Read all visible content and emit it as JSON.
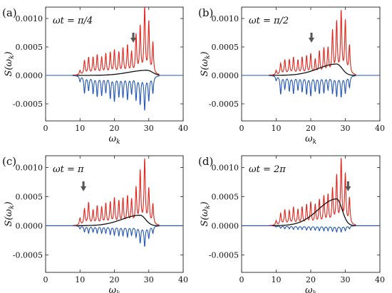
{
  "chart_data": [
    {
      "type": "line",
      "panel_label": "(a)",
      "annotation": "ωt = π/4",
      "xlabel": "ω_k",
      "ylabel": "S(ω_k)",
      "xlim": [
        0,
        40
      ],
      "ylim": [
        -0.0008,
        0.0012
      ],
      "x_ticks": [
        "0",
        "10",
        "20",
        "30",
        "40"
      ],
      "y_ticks": [
        "0.0010",
        "0.0005",
        "0.0000",
        "-0.0005"
      ],
      "arrow_x": 25.5,
      "envelope_peak_x": 29.5,
      "envelope_peak_y": 9e-05,
      "series": [
        {
          "color": "#e3241b",
          "x": [
            10,
            11.3,
            12.5,
            13.8,
            15.0,
            16.3,
            17.5,
            18.8,
            20.0,
            21.3,
            22.5,
            23.8,
            25.0,
            26.3,
            27.5,
            28.8,
            30.0,
            31.2
          ],
          "y": [
            8e-05,
            0.00025,
            0.0003,
            0.0003,
            0.00034,
            0.0003,
            0.00036,
            0.00038,
            0.00042,
            0.00038,
            0.00045,
            0.0005,
            0.00038,
            0.00068,
            0.00082,
            0.00115,
            0.0009,
            0.00055
          ]
        },
        {
          "color": "#2256b5",
          "x": [
            10,
            11.3,
            12.5,
            13.8,
            15.0,
            16.3,
            17.5,
            18.8,
            20.0,
            21.3,
            22.5,
            23.8,
            25.0,
            26.3,
            27.5,
            28.8,
            30.0,
            31.2
          ],
          "y": [
            -0.0001,
            -0.0003,
            -0.00025,
            -0.0003,
            -0.00035,
            -0.00033,
            -0.00028,
            -0.00038,
            -0.00043,
            -0.00035,
            -0.00036,
            -0.0004,
            -0.0003,
            -0.00041,
            -0.00048,
            -0.00058,
            -0.00042,
            -0.0003
          ]
        }
      ]
    },
    {
      "type": "line",
      "panel_label": "(b)",
      "annotation": "ωt = π/2",
      "xlabel": "ω_k",
      "ylabel": "S(ω_k)",
      "xlim": [
        0,
        40
      ],
      "ylim": [
        -0.0008,
        0.0012
      ],
      "x_ticks": [
        "0",
        "10",
        "20",
        "30",
        "40"
      ],
      "y_ticks": [
        "0.0010",
        "0.0005",
        "0.0000",
        "-0.0005"
      ],
      "arrow_x": 20.2,
      "envelope_peak_x": 27.5,
      "envelope_peak_y": 0.0002,
      "series": [
        {
          "color": "#e3241b",
          "x": [
            10,
            11.3,
            12.5,
            13.8,
            15.0,
            16.3,
            17.5,
            18.8,
            20.0,
            21.3,
            22.5,
            23.8,
            25.0,
            26.3,
            27.5,
            28.8,
            30.0,
            31.2
          ],
          "y": [
            8e-05,
            0.0002,
            0.00026,
            0.00026,
            0.0003,
            0.00025,
            0.0003,
            0.00032,
            0.00036,
            0.00026,
            0.0004,
            0.00045,
            0.00045,
            0.00075,
            0.0009,
            0.00108,
            0.00092,
            0.0005
          ]
        },
        {
          "color": "#2256b5",
          "x": [
            10,
            11.3,
            12.5,
            13.8,
            15.0,
            16.3,
            17.5,
            18.8,
            20.0,
            21.3,
            22.5,
            23.8,
            25.0,
            26.3,
            27.5,
            28.8,
            30.0,
            31.2
          ],
          "y": [
            -8e-05,
            -0.00032,
            -0.00022,
            -0.00026,
            -0.0003,
            -0.00024,
            -0.00027,
            -0.00031,
            -0.00034,
            -0.00026,
            -0.0003,
            -0.00029,
            -0.00023,
            -0.0003,
            -0.00035,
            -0.00036,
            -0.0003,
            -0.0002
          ]
        }
      ]
    },
    {
      "type": "line",
      "panel_label": "(c)",
      "annotation": "ωt = π",
      "xlabel": "ω_k",
      "ylabel": "S(ω_k)",
      "xlim": [
        0,
        40
      ],
      "ylim": [
        -0.0008,
        0.0012
      ],
      "x_ticks": [
        "0",
        "10",
        "20",
        "30",
        "40"
      ],
      "y_ticks": [
        "0.0010",
        "0.0005",
        "0.0000",
        "-0.0005"
      ],
      "arrow_x": 11.0,
      "envelope_peak_x": 27.5,
      "envelope_peak_y": 0.00018,
      "series": [
        {
          "color": "#e3241b",
          "x": [
            10,
            11.3,
            12.5,
            13.8,
            15.0,
            16.3,
            17.5,
            18.8,
            20.0,
            21.3,
            22.5,
            23.8,
            25.0,
            26.3,
            27.5,
            28.8,
            30.0,
            31.2
          ],
          "y": [
            0.00012,
            0.00028,
            0.00038,
            0.00025,
            0.00032,
            0.0003,
            0.00036,
            0.00038,
            0.00045,
            0.0004,
            0.00044,
            0.00048,
            0.00042,
            0.00062,
            0.0009,
            0.0011,
            0.0006,
            0.00035
          ]
        },
        {
          "color": "#2256b5",
          "x": [
            10,
            11.3,
            12.5,
            13.8,
            15.0,
            16.3,
            17.5,
            18.8,
            20.0,
            21.3,
            22.5,
            23.8,
            25.0,
            26.3,
            27.5,
            28.8,
            30.0,
            31.2
          ],
          "y": [
            -5e-05,
            -0.0001,
            -0.00012,
            -0.0001,
            -0.00012,
            -0.00012,
            -0.00012,
            -0.00014,
            -0.00015,
            -0.00016,
            -0.00016,
            -0.00018,
            -0.00015,
            -0.00018,
            -0.00028,
            -0.00034,
            -0.0002,
            -0.00012
          ]
        }
      ]
    },
    {
      "type": "line",
      "panel_label": "(d)",
      "annotation": "ωt = 2π",
      "xlabel": "ω_k",
      "ylabel": "S(ω_k)",
      "xlim": [
        0,
        40
      ],
      "ylim": [
        -0.0008,
        0.0012
      ],
      "x_ticks": [
        "0",
        "10",
        "20",
        "30",
        "40"
      ],
      "y_ticks": [
        "0.0010",
        "0.0005",
        "0.0000",
        "-0.0005"
      ],
      "arrow_x": 30.8,
      "envelope_peak_x": 27.5,
      "envelope_peak_y": 0.00046,
      "series": [
        {
          "color": "#e3241b",
          "x": [
            10,
            11.3,
            12.5,
            13.8,
            15.0,
            16.3,
            17.5,
            18.8,
            20.0,
            21.3,
            22.5,
            23.8,
            25.0,
            26.3,
            27.5,
            28.8,
            30.0,
            31.2
          ],
          "y": [
            8e-05,
            0.0002,
            0.00026,
            0.00024,
            0.0003,
            0.00026,
            0.0003,
            0.00034,
            0.00038,
            0.00034,
            0.00042,
            0.00048,
            0.0005,
            0.0006,
            0.00082,
            0.0011,
            0.00085,
            0.00045
          ]
        },
        {
          "color": "#2256b5",
          "x": [
            10,
            11.3,
            12.5,
            13.8,
            15.0,
            16.3,
            17.5,
            18.8,
            20.0,
            21.3,
            22.5,
            23.8,
            25.0,
            26.3,
            27.5,
            28.8,
            30.0,
            31.2
          ],
          "y": [
            -2e-05,
            -4e-05,
            -5e-05,
            -5e-05,
            -6e-05,
            -6e-05,
            -6e-05,
            -7e-05,
            -7e-05,
            -7e-05,
            -8e-05,
            -8e-05,
            -8e-05,
            -9e-05,
            -0.0001,
            -0.0001,
            -8e-05,
            -5e-05
          ]
        }
      ]
    }
  ]
}
